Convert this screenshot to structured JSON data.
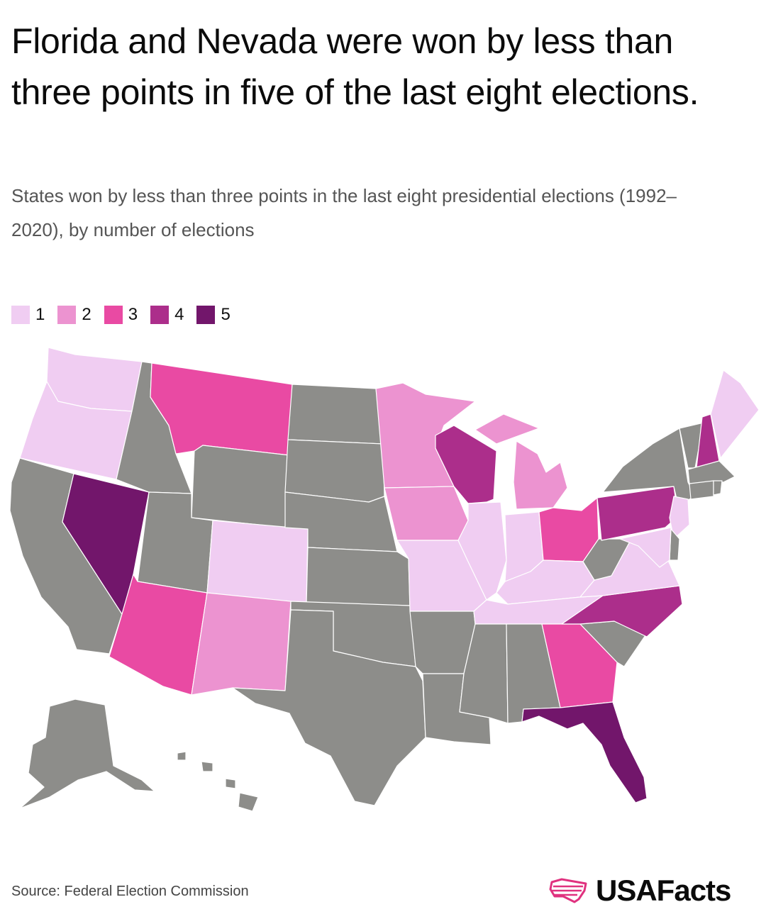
{
  "title": "Florida and Nevada were won by less than three points in five of the last eight elections.",
  "subtitle": "States won by less than three points in the last eight presidential elections (1992–2020), by number of elections",
  "legend": [
    {
      "label": "1",
      "color": "#f0cdf2"
    },
    {
      "label": "2",
      "color": "#ec93d0"
    },
    {
      "label": "3",
      "color": "#e94aa3"
    },
    {
      "label": "4",
      "color": "#ac2e8b"
    },
    {
      "label": "5",
      "color": "#72166b"
    }
  ],
  "no_data_color": "#8d8d8a",
  "state_counts": {
    "WA": 1,
    "OR": 1,
    "CA": 0,
    "NV": 5,
    "ID": 0,
    "MT": 3,
    "WY": 0,
    "UT": 0,
    "AZ": 3,
    "CO": 1,
    "NM": 2,
    "ND": 0,
    "SD": 0,
    "NE": 0,
    "KS": 0,
    "OK": 0,
    "TX": 0,
    "MN": 2,
    "IA": 2,
    "MO": 1,
    "AR": 0,
    "LA": 0,
    "WI": 4,
    "IL": 1,
    "MI": 2,
    "IN": 1,
    "OH": 3,
    "KY": 1,
    "TN": 1,
    "MS": 0,
    "AL": 0,
    "GA": 3,
    "FL": 5,
    "SC": 0,
    "NC": 4,
    "VA": 1,
    "WV": 0,
    "PA": 4,
    "NY": 0,
    "VT": 0,
    "NH": 4,
    "ME": 1,
    "MA": 0,
    "CT": 0,
    "RI": 0,
    "NJ": 1,
    "DE": 0,
    "MD": 1,
    "AK": 0,
    "HI": 0
  },
  "source": "Source: Federal Election Commission",
  "brand": "USAFacts"
}
